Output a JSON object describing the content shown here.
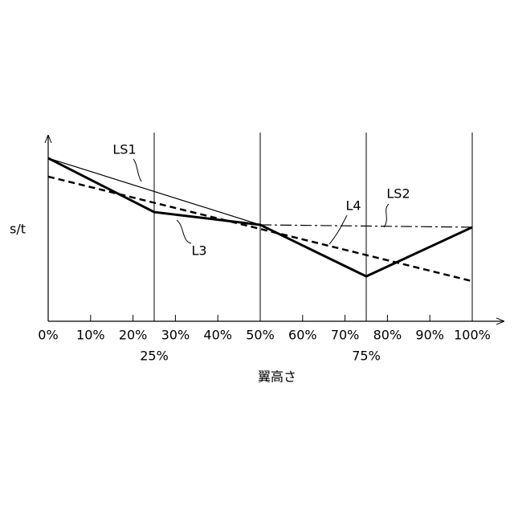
{
  "chart_data": {
    "type": "line",
    "xlabel": "翼高さ",
    "ylabel": "s/t",
    "xlim": [
      0,
      100
    ],
    "ylim": [
      0,
      100
    ],
    "xticks": [
      {
        "value": 0,
        "label": "0%"
      },
      {
        "value": 10,
        "label": "10%"
      },
      {
        "value": 20,
        "label": "20%"
      },
      {
        "value": 30,
        "label": "30%"
      },
      {
        "value": 40,
        "label": "40%"
      },
      {
        "value": 50,
        "label": "50%"
      },
      {
        "value": 60,
        "label": "60%"
      },
      {
        "value": 70,
        "label": "70%"
      },
      {
        "value": 80,
        "label": "80%"
      },
      {
        "value": 90,
        "label": "90%"
      },
      {
        "value": 100,
        "label": "100%"
      }
    ],
    "vlines": [
      {
        "value": 25,
        "label": "25%"
      },
      50,
      {
        "value": 75,
        "label": "75%"
      },
      100
    ],
    "series": [
      {
        "name": "LS1",
        "color": "#000000",
        "style": "thin",
        "x": [
          0,
          50
        ],
        "values": [
          88.3,
          52.2
        ]
      },
      {
        "name": "L3",
        "color": "#000000",
        "style": "thick",
        "x": [
          0,
          25,
          50,
          75,
          100
        ],
        "values": [
          88.3,
          59.1,
          52.2,
          24.3,
          50.9
        ]
      },
      {
        "name": "L4",
        "color": "#000000",
        "style": "dashed",
        "x": [
          0,
          100
        ],
        "values": [
          78.3,
          21.7
        ]
      },
      {
        "name": "LS2",
        "color": "#000000",
        "style": "dashdot",
        "x": [
          50,
          100
        ],
        "values": [
          52.2,
          50.9
        ]
      }
    ]
  }
}
